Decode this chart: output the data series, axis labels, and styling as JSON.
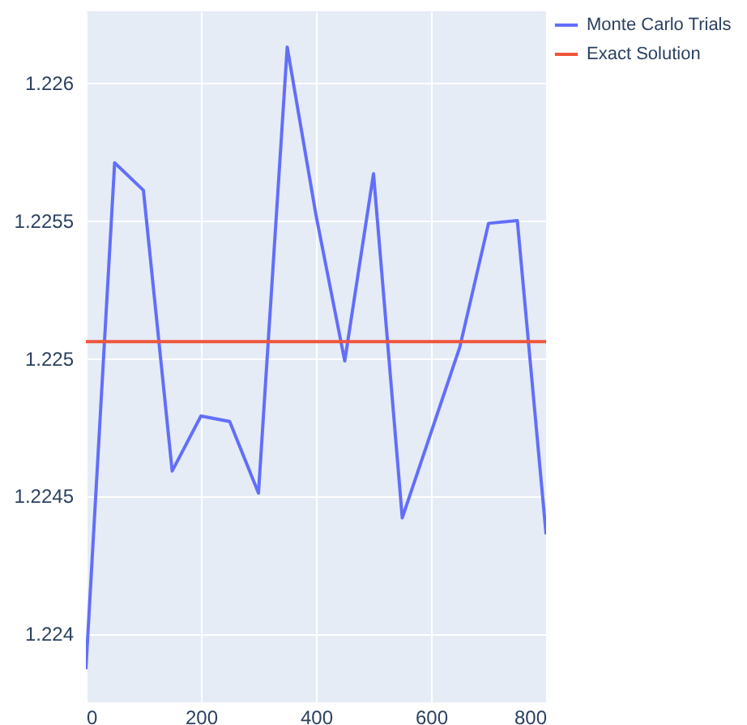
{
  "chart_data": {
    "type": "line",
    "x": [
      0,
      50,
      100,
      150,
      200,
      250,
      300,
      350,
      400,
      450,
      500,
      550,
      600,
      650,
      700,
      750,
      800
    ],
    "series": [
      {
        "name": "Monte Carlo Trials",
        "color": "#636efa",
        "values": [
          1.22387,
          1.22571,
          1.22561,
          1.22459,
          1.22479,
          1.22477,
          1.22451,
          1.22613,
          1.22552,
          1.22499,
          1.22567,
          1.22442,
          1.22473,
          1.22504,
          1.22549,
          1.2255,
          1.22436
        ]
      },
      {
        "name": "Exact Solution",
        "color": "#ef553b",
        "values": [
          1.22506,
          1.22506,
          1.22506,
          1.22506,
          1.22506,
          1.22506,
          1.22506,
          1.22506,
          1.22506,
          1.22506,
          1.22506,
          1.22506,
          1.22506,
          1.22506,
          1.22506,
          1.22506,
          1.22506
        ]
      }
    ],
    "xlim": [
      0,
      800
    ],
    "xticks": [
      0,
      200,
      400,
      600,
      800
    ],
    "ylim": [
      1.22375,
      1.22626
    ],
    "yticks": [
      1.224,
      1.2245,
      1.225,
      1.2255,
      1.226
    ],
    "grid": true,
    "legend": "top right"
  }
}
